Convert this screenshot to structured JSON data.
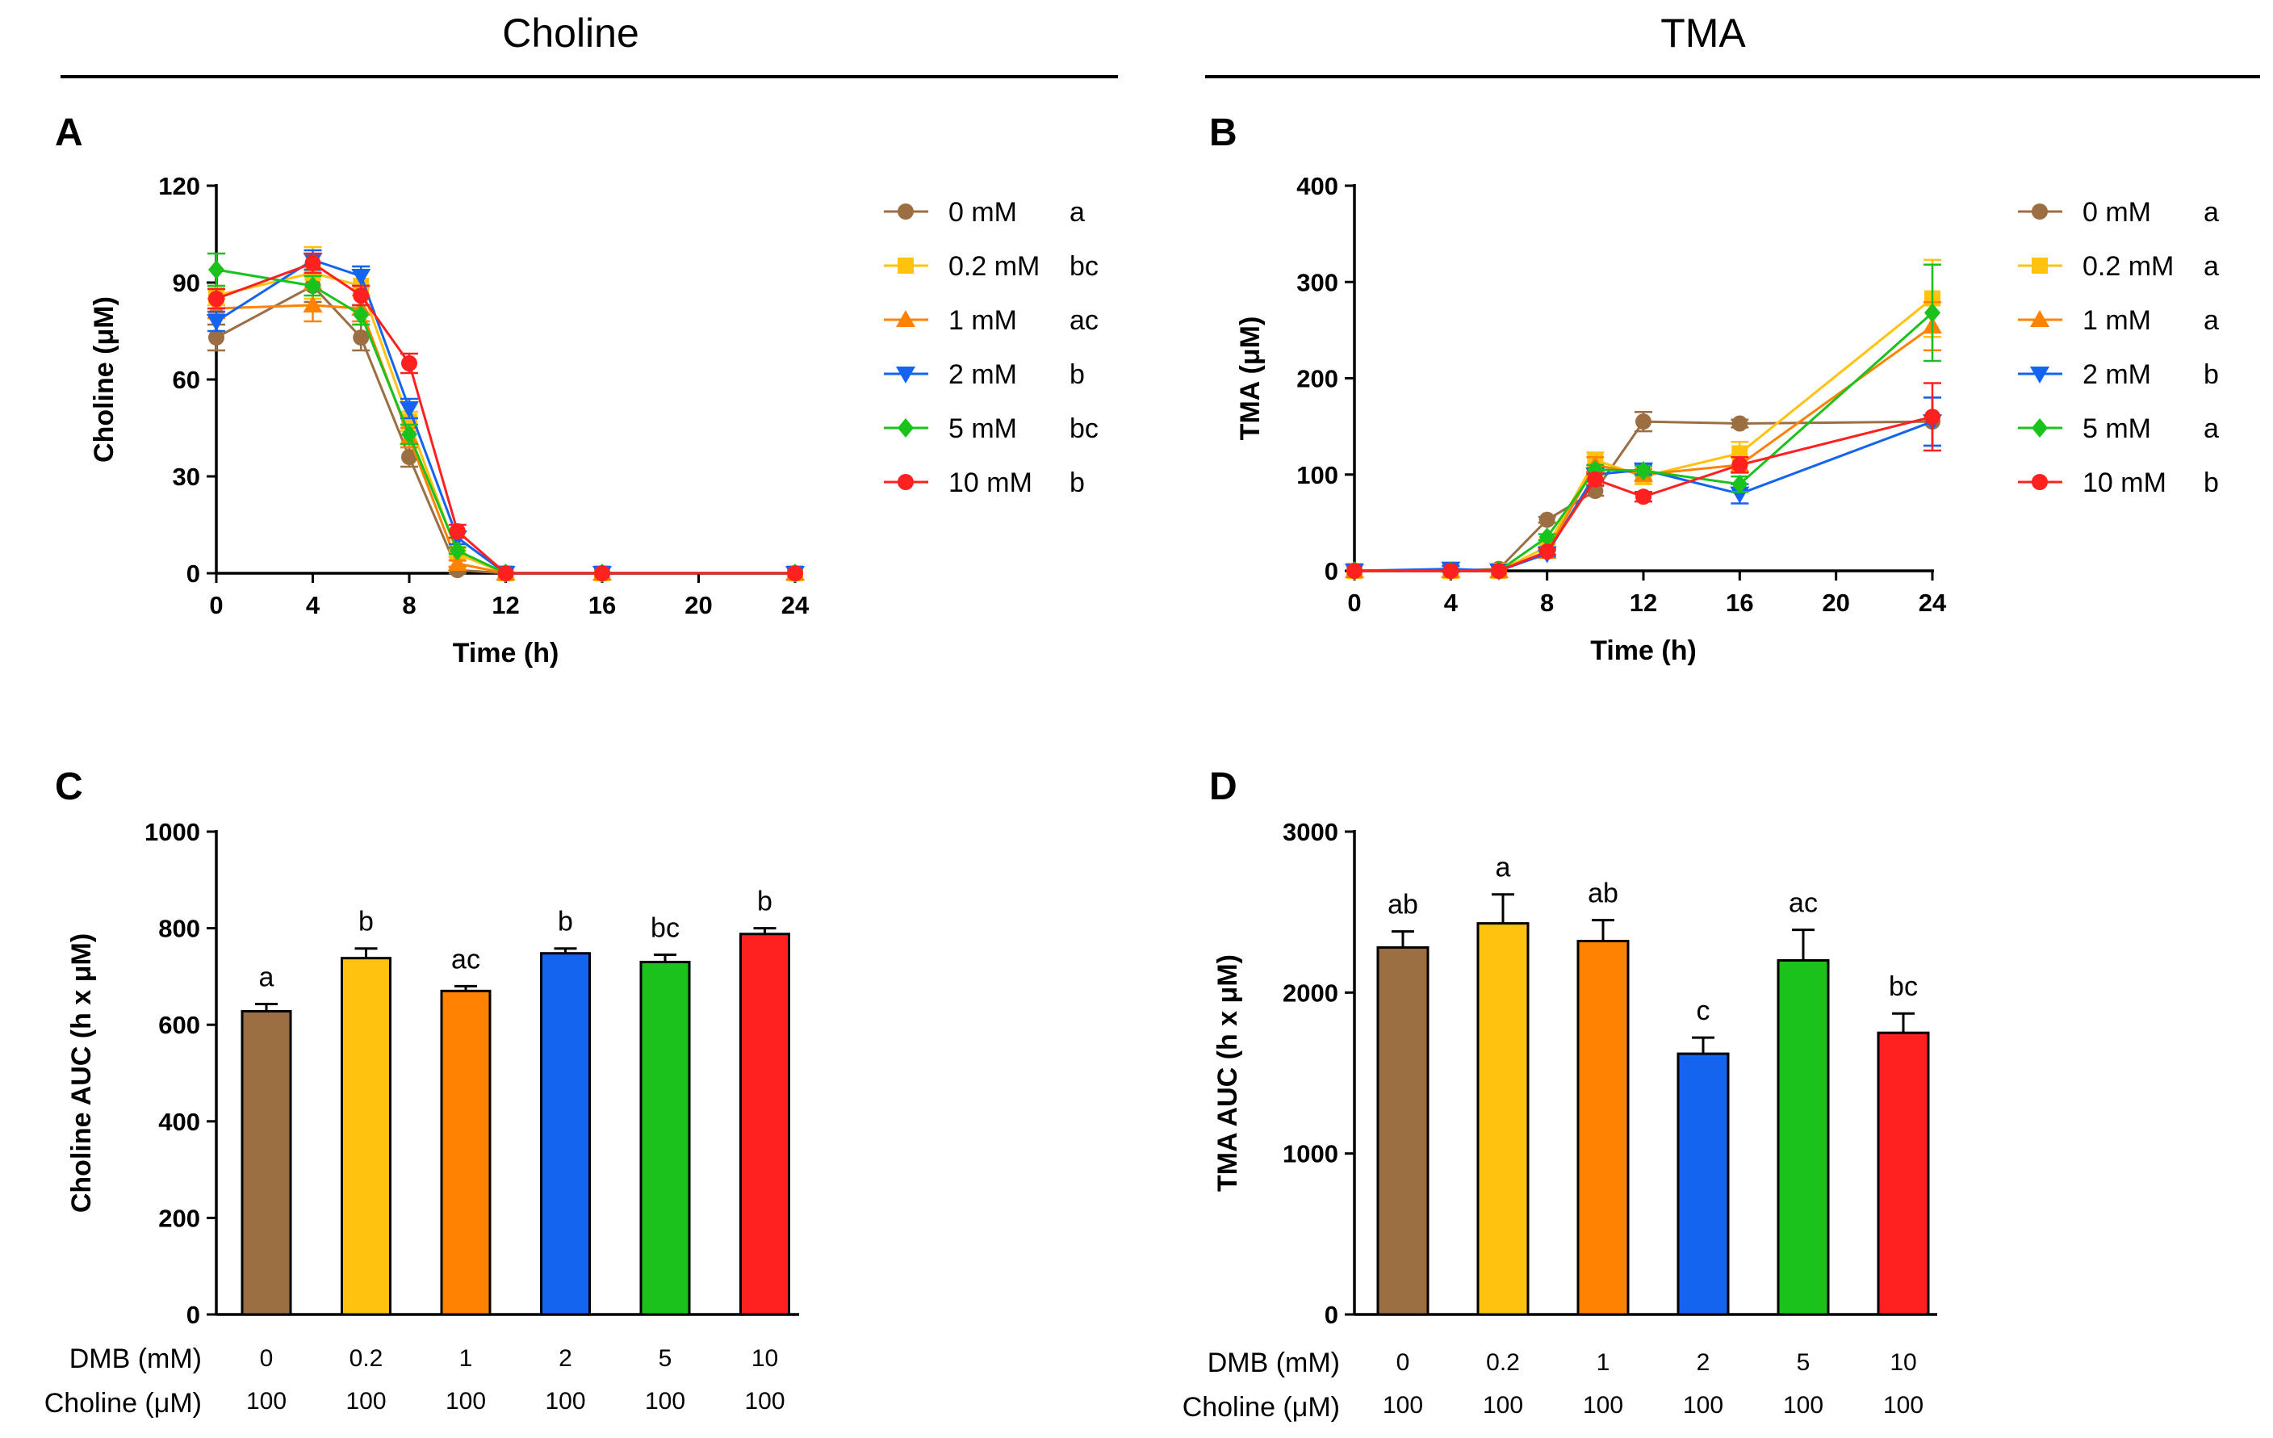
{
  "headers": {
    "choline": "Choline",
    "tma": "TMA"
  },
  "colors": {
    "0": "#9c6f43",
    "0.2": "#ffc20e",
    "1": "#ff8200",
    "2": "#1464f0",
    "5": "#1cc21c",
    "10": "#ff2020"
  },
  "chart_data": [
    {
      "panel": "A",
      "type": "line",
      "title": "Choline",
      "xlabel": "Time (h)",
      "ylabel": "Choline (μM)",
      "xlim": [
        0,
        24
      ],
      "ylim": [
        0,
        120
      ],
      "xticks": [
        0,
        4,
        8,
        12,
        16,
        20,
        24
      ],
      "yticks": [
        0,
        30,
        60,
        90,
        120
      ],
      "x": [
        0,
        4,
        6,
        8,
        10,
        12,
        16,
        24
      ],
      "legend_position": "right",
      "series": [
        {
          "name": "0 mM",
          "key": "0",
          "letter": "a",
          "marker": "circle",
          "values": [
            73,
            89,
            73,
            36,
            1,
            0,
            0,
            0
          ],
          "errors": [
            4,
            5,
            4,
            3,
            1,
            0,
            0,
            0
          ]
        },
        {
          "name": "0.2 mM",
          "key": "0.2",
          "letter": "bc",
          "marker": "square",
          "values": [
            86,
            93,
            89,
            47,
            6,
            0,
            0,
            0
          ],
          "errors": [
            3,
            8,
            6,
            3,
            1,
            0,
            0,
            0
          ]
        },
        {
          "name": "1 mM",
          "key": "1",
          "letter": "ac",
          "marker": "triangle-up",
          "values": [
            82,
            83,
            82,
            42,
            3,
            0,
            0,
            0
          ],
          "errors": [
            3,
            5,
            4,
            3,
            1,
            0,
            0,
            0
          ]
        },
        {
          "name": "2 mM",
          "key": "2",
          "letter": "b",
          "marker": "triangle-down",
          "values": [
            78,
            97,
            92,
            51,
            11,
            0,
            0,
            0
          ],
          "errors": [
            3,
            3,
            3,
            3,
            2,
            0,
            0,
            0
          ]
        },
        {
          "name": "5 mM",
          "key": "5",
          "letter": "bc",
          "marker": "diamond",
          "values": [
            94,
            89,
            80,
            43,
            7,
            0,
            0,
            0
          ],
          "errors": [
            5,
            3,
            3,
            3,
            1,
            0,
            0,
            0
          ]
        },
        {
          "name": "10 mM",
          "key": "10",
          "letter": "b",
          "marker": "circle",
          "values": [
            85,
            96,
            86,
            65,
            13,
            0,
            0,
            0
          ],
          "errors": [
            3,
            3,
            3,
            3,
            2,
            0,
            0,
            0
          ]
        }
      ]
    },
    {
      "panel": "B",
      "type": "line",
      "title": "TMA",
      "xlabel": "Time (h)",
      "ylabel": "TMA (μM)",
      "xlim": [
        0,
        24
      ],
      "ylim": [
        0,
        400
      ],
      "xticks": [
        0,
        4,
        8,
        12,
        16,
        20,
        24
      ],
      "yticks": [
        0,
        100,
        200,
        300,
        400
      ],
      "x": [
        0,
        4,
        6,
        8,
        10,
        12,
        16,
        24
      ],
      "legend_position": "right",
      "series": [
        {
          "name": "0 mM",
          "key": "0",
          "letter": "a",
          "marker": "circle",
          "values": [
            0,
            0,
            2,
            53,
            83,
            155,
            153,
            155
          ],
          "errors": [
            0,
            0,
            0,
            3,
            5,
            10,
            4,
            25
          ]
        },
        {
          "name": "0.2 mM",
          "key": "0.2",
          "letter": "a",
          "marker": "square",
          "values": [
            0,
            0,
            0,
            25,
            115,
            98,
            122,
            283
          ],
          "errors": [
            0,
            0,
            0,
            3,
            8,
            8,
            12,
            40
          ]
        },
        {
          "name": "1 mM",
          "key": "1",
          "letter": "a",
          "marker": "triangle-up",
          "values": [
            0,
            0,
            0,
            20,
            110,
            100,
            110,
            254
          ],
          "errors": [
            0,
            0,
            0,
            3,
            8,
            6,
            8,
            25
          ]
        },
        {
          "name": "2 mM",
          "key": "2",
          "letter": "b",
          "marker": "triangle-down",
          "values": [
            0,
            2,
            0,
            18,
            100,
            105,
            80,
            155
          ],
          "errors": [
            0,
            3,
            0,
            3,
            6,
            5,
            10,
            25
          ]
        },
        {
          "name": "5 mM",
          "key": "5",
          "letter": "a",
          "marker": "diamond",
          "values": [
            0,
            0,
            0,
            35,
            105,
            104,
            90,
            268
          ],
          "errors": [
            0,
            0,
            0,
            3,
            5,
            5,
            8,
            50
          ]
        },
        {
          "name": "10 mM",
          "key": "10",
          "letter": "b",
          "marker": "circle",
          "values": [
            0,
            0,
            0,
            20,
            95,
            77,
            110,
            160
          ],
          "errors": [
            0,
            0,
            0,
            3,
            6,
            5,
            8,
            35
          ]
        }
      ]
    },
    {
      "panel": "C",
      "type": "bar",
      "title": "Choline AUC",
      "ylabel": "Choline AUC (h x μM)",
      "ylim": [
        0,
        1000
      ],
      "yticks": [
        0,
        200,
        400,
        600,
        800,
        1000
      ],
      "row_labels": [
        "DMB (mM)",
        "Choline (μM)"
      ],
      "categories": [
        "0",
        "0.2",
        "1",
        "2",
        "5",
        "10"
      ],
      "choline_values": [
        "100",
        "100",
        "100",
        "100",
        "100",
        "100"
      ],
      "values": [
        628,
        738,
        670,
        748,
        730,
        788
      ],
      "errors": [
        15,
        20,
        10,
        10,
        15,
        12
      ],
      "letters": [
        "a",
        "b",
        "ac",
        "b",
        "bc",
        "b"
      ]
    },
    {
      "panel": "D",
      "type": "bar",
      "title": "TMA AUC",
      "ylabel": "TMA AUC (h x μM)",
      "ylim": [
        0,
        3000
      ],
      "yticks": [
        0,
        1000,
        2000,
        3000
      ],
      "row_labels": [
        "DMB (mM)",
        "Choline (μM)"
      ],
      "categories": [
        "0",
        "0.2",
        "1",
        "2",
        "5",
        "10"
      ],
      "choline_values": [
        "100",
        "100",
        "100",
        "100",
        "100",
        "100"
      ],
      "values": [
        2280,
        2430,
        2320,
        1620,
        2200,
        1750
      ],
      "errors": [
        100,
        180,
        130,
        100,
        190,
        120
      ],
      "letters": [
        "ab",
        "a",
        "ab",
        "c",
        "ac",
        "bc"
      ]
    }
  ]
}
